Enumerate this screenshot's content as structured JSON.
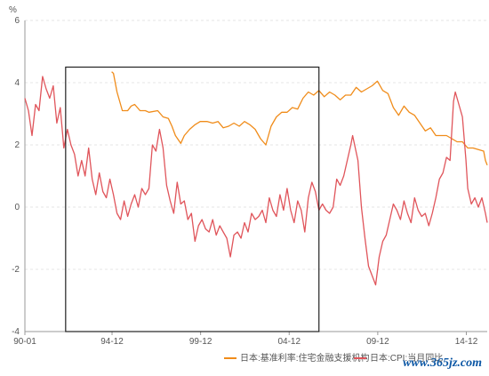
{
  "chart_data": {
    "type": "line",
    "ylabel": "%",
    "ylim": [
      -4,
      6
    ],
    "yticks": [
      "-4",
      "-2",
      "0",
      "2",
      "4",
      "6"
    ],
    "xlim": [
      1990.0,
      2016.1
    ],
    "xticks": [
      {
        "label": "90-01",
        "x": 1990.0
      },
      {
        "label": "94-12",
        "x": 1994.92
      },
      {
        "label": "99-12",
        "x": 1999.92
      },
      {
        "label": "04-12",
        "x": 2004.92
      },
      {
        "label": "09-12",
        "x": 2009.92
      },
      {
        "label": "14-12",
        "x": 2014.92
      }
    ],
    "grid": true,
    "legend_position": "bottom-right",
    "annotation_box": {
      "x0": 1992.3,
      "x1": 2006.6,
      "y0": -4,
      "y1": 4.5
    },
    "series": [
      {
        "name": "日本:基准利率:住宅金融支援机构",
        "color": "#f08c1a",
        "points": [
          [
            1994.9,
            4.35
          ],
          [
            1995.0,
            4.3
          ],
          [
            1995.2,
            3.7
          ],
          [
            1995.4,
            3.3
          ],
          [
            1995.5,
            3.1
          ],
          [
            1995.8,
            3.1
          ],
          [
            1996.0,
            3.25
          ],
          [
            1996.2,
            3.3
          ],
          [
            1996.5,
            3.1
          ],
          [
            1996.8,
            3.1
          ],
          [
            1997.0,
            3.05
          ],
          [
            1997.5,
            3.1
          ],
          [
            1997.8,
            2.9
          ],
          [
            1998.1,
            2.85
          ],
          [
            1998.3,
            2.6
          ],
          [
            1998.5,
            2.3
          ],
          [
            1998.8,
            2.05
          ],
          [
            1999.0,
            2.3
          ],
          [
            1999.3,
            2.5
          ],
          [
            1999.6,
            2.65
          ],
          [
            1999.9,
            2.75
          ],
          [
            2000.3,
            2.75
          ],
          [
            2000.6,
            2.7
          ],
          [
            2000.9,
            2.75
          ],
          [
            2001.2,
            2.55
          ],
          [
            2001.5,
            2.6
          ],
          [
            2001.8,
            2.7
          ],
          [
            2002.1,
            2.6
          ],
          [
            2002.4,
            2.75
          ],
          [
            2002.7,
            2.65
          ],
          [
            2003.0,
            2.5
          ],
          [
            2003.3,
            2.2
          ],
          [
            2003.6,
            2.0
          ],
          [
            2003.9,
            2.6
          ],
          [
            2004.2,
            2.9
          ],
          [
            2004.5,
            3.05
          ],
          [
            2004.8,
            3.05
          ],
          [
            2005.1,
            3.2
          ],
          [
            2005.4,
            3.15
          ],
          [
            2005.7,
            3.5
          ],
          [
            2006.0,
            3.7
          ],
          [
            2006.3,
            3.6
          ],
          [
            2006.6,
            3.75
          ],
          [
            2006.9,
            3.55
          ],
          [
            2007.2,
            3.7
          ],
          [
            2007.5,
            3.6
          ],
          [
            2007.8,
            3.45
          ],
          [
            2008.1,
            3.6
          ],
          [
            2008.4,
            3.6
          ],
          [
            2008.7,
            3.85
          ],
          [
            2009.0,
            3.7
          ],
          [
            2009.3,
            3.8
          ],
          [
            2009.6,
            3.9
          ],
          [
            2009.9,
            4.05
          ],
          [
            2010.2,
            3.75
          ],
          [
            2010.5,
            3.65
          ],
          [
            2010.8,
            3.2
          ],
          [
            2011.1,
            2.95
          ],
          [
            2011.4,
            3.25
          ],
          [
            2011.7,
            3.05
          ],
          [
            2012.0,
            2.95
          ],
          [
            2012.3,
            2.7
          ],
          [
            2012.6,
            2.45
          ],
          [
            2012.9,
            2.55
          ],
          [
            2013.2,
            2.3
          ],
          [
            2013.5,
            2.3
          ],
          [
            2013.8,
            2.3
          ],
          [
            2014.1,
            2.2
          ],
          [
            2014.4,
            2.1
          ],
          [
            2014.7,
            2.1
          ],
          [
            2015.0,
            1.9
          ],
          [
            2015.3,
            1.9
          ],
          [
            2015.6,
            1.85
          ],
          [
            2015.9,
            1.8
          ],
          [
            2016.0,
            1.5
          ],
          [
            2016.1,
            1.35
          ]
        ]
      },
      {
        "name": "日本:CPI:当月同比",
        "color": "#e0555b",
        "points": [
          [
            1990.0,
            3.5
          ],
          [
            1990.2,
            3.1
          ],
          [
            1990.4,
            2.3
          ],
          [
            1990.6,
            3.3
          ],
          [
            1990.8,
            3.1
          ],
          [
            1991.0,
            4.2
          ],
          [
            1991.2,
            3.8
          ],
          [
            1991.4,
            3.5
          ],
          [
            1991.6,
            3.9
          ],
          [
            1991.8,
            2.7
          ],
          [
            1992.0,
            3.2
          ],
          [
            1992.2,
            1.9
          ],
          [
            1992.4,
            2.5
          ],
          [
            1992.6,
            2.0
          ],
          [
            1992.8,
            1.7
          ],
          [
            1993.0,
            1.0
          ],
          [
            1993.2,
            1.5
          ],
          [
            1993.4,
            1.0
          ],
          [
            1993.6,
            1.9
          ],
          [
            1993.8,
            0.9
          ],
          [
            1994.0,
            0.4
          ],
          [
            1994.2,
            1.1
          ],
          [
            1994.4,
            0.5
          ],
          [
            1994.6,
            0.3
          ],
          [
            1994.8,
            0.9
          ],
          [
            1995.0,
            0.4
          ],
          [
            1995.2,
            -0.2
          ],
          [
            1995.4,
            -0.4
          ],
          [
            1995.6,
            0.2
          ],
          [
            1995.8,
            -0.3
          ],
          [
            1996.0,
            0.1
          ],
          [
            1996.2,
            0.4
          ],
          [
            1996.4,
            0.0
          ],
          [
            1996.6,
            0.6
          ],
          [
            1996.8,
            0.4
          ],
          [
            1997.0,
            0.6
          ],
          [
            1997.2,
            2.0
          ],
          [
            1997.4,
            1.8
          ],
          [
            1997.6,
            2.5
          ],
          [
            1997.8,
            1.9
          ],
          [
            1998.0,
            0.7
          ],
          [
            1998.2,
            0.2
          ],
          [
            1998.4,
            -0.2
          ],
          [
            1998.6,
            0.8
          ],
          [
            1998.8,
            0.1
          ],
          [
            1999.0,
            0.2
          ],
          [
            1999.2,
            -0.4
          ],
          [
            1999.4,
            -0.2
          ],
          [
            1999.6,
            -1.1
          ],
          [
            1999.8,
            -0.6
          ],
          [
            2000.0,
            -0.4
          ],
          [
            2000.2,
            -0.7
          ],
          [
            2000.4,
            -0.8
          ],
          [
            2000.6,
            -0.4
          ],
          [
            2000.8,
            -0.9
          ],
          [
            2001.0,
            -0.6
          ],
          [
            2001.2,
            -0.8
          ],
          [
            2001.4,
            -1.0
          ],
          [
            2001.6,
            -1.6
          ],
          [
            2001.8,
            -0.9
          ],
          [
            2002.0,
            -0.8
          ],
          [
            2002.2,
            -1.0
          ],
          [
            2002.4,
            -0.5
          ],
          [
            2002.6,
            -0.8
          ],
          [
            2002.8,
            -0.2
          ],
          [
            2003.0,
            -0.4
          ],
          [
            2003.2,
            -0.3
          ],
          [
            2003.4,
            -0.1
          ],
          [
            2003.6,
            -0.5
          ],
          [
            2003.8,
            0.3
          ],
          [
            2004.0,
            -0.1
          ],
          [
            2004.2,
            -0.3
          ],
          [
            2004.4,
            0.4
          ],
          [
            2004.6,
            -0.1
          ],
          [
            2004.8,
            0.6
          ],
          [
            2005.0,
            -0.1
          ],
          [
            2005.2,
            -0.5
          ],
          [
            2005.4,
            0.2
          ],
          [
            2005.6,
            -0.1
          ],
          [
            2005.8,
            -0.8
          ],
          [
            2006.0,
            0.3
          ],
          [
            2006.2,
            0.8
          ],
          [
            2006.4,
            0.5
          ],
          [
            2006.6,
            -0.1
          ],
          [
            2006.8,
            0.1
          ],
          [
            2007.0,
            -0.1
          ],
          [
            2007.2,
            -0.2
          ],
          [
            2007.4,
            0.0
          ],
          [
            2007.6,
            0.9
          ],
          [
            2007.8,
            0.7
          ],
          [
            2008.0,
            1.0
          ],
          [
            2008.2,
            1.5
          ],
          [
            2008.4,
            2.0
          ],
          [
            2008.5,
            2.3
          ],
          [
            2008.8,
            1.5
          ],
          [
            2009.0,
            0.0
          ],
          [
            2009.2,
            -1.0
          ],
          [
            2009.4,
            -1.9
          ],
          [
            2009.6,
            -2.2
          ],
          [
            2009.8,
            -2.5
          ],
          [
            2010.0,
            -1.6
          ],
          [
            2010.2,
            -1.1
          ],
          [
            2010.4,
            -0.9
          ],
          [
            2010.6,
            -0.4
          ],
          [
            2010.8,
            0.1
          ],
          [
            2011.0,
            -0.1
          ],
          [
            2011.2,
            -0.4
          ],
          [
            2011.4,
            0.2
          ],
          [
            2011.6,
            -0.2
          ],
          [
            2011.8,
            -0.5
          ],
          [
            2012.0,
            0.3
          ],
          [
            2012.2,
            -0.1
          ],
          [
            2012.4,
            -0.3
          ],
          [
            2012.6,
            -0.2
          ],
          [
            2012.8,
            -0.6
          ],
          [
            2013.0,
            -0.2
          ],
          [
            2013.2,
            0.3
          ],
          [
            2013.4,
            0.9
          ],
          [
            2013.6,
            1.1
          ],
          [
            2013.8,
            1.6
          ],
          [
            2014.0,
            1.5
          ],
          [
            2014.2,
            3.4
          ],
          [
            2014.3,
            3.7
          ],
          [
            2014.5,
            3.3
          ],
          [
            2014.7,
            2.9
          ],
          [
            2014.9,
            1.5
          ],
          [
            2015.0,
            0.6
          ],
          [
            2015.2,
            0.1
          ],
          [
            2015.4,
            0.3
          ],
          [
            2015.6,
            0.0
          ],
          [
            2015.8,
            0.3
          ],
          [
            2016.0,
            -0.2
          ],
          [
            2016.1,
            -0.5
          ]
        ]
      }
    ]
  },
  "watermark": "www.365jz.com"
}
